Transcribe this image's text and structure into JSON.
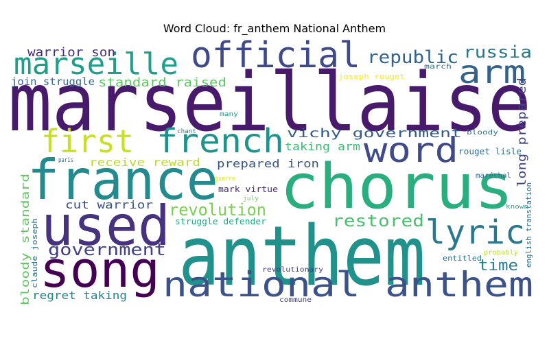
{
  "chart_data": {
    "type": "wordcloud",
    "title": "Word Cloud: fr_anthem National Anthem",
    "words": [
      {
        "text": "marseillaise",
        "color": "#481a6c"
      },
      {
        "text": "anthem",
        "color": "#21918c"
      },
      {
        "text": "chorus",
        "color": "#29af7f"
      },
      {
        "text": "france",
        "color": "#238a8d"
      },
      {
        "text": "used",
        "color": "#46327e"
      },
      {
        "text": "song",
        "color": "#440154"
      },
      {
        "text": "national anthem",
        "color": "#3b528b"
      },
      {
        "text": "official",
        "color": "#3e4a89"
      },
      {
        "text": "marseille",
        "color": "#1f9e89"
      },
      {
        "text": "arm",
        "color": "#33638d"
      },
      {
        "text": "first",
        "color": "#c8e020"
      },
      {
        "text": "french",
        "color": "#20928c"
      },
      {
        "text": "word",
        "color": "#3e4a89"
      },
      {
        "text": "lyric",
        "color": "#2a788e"
      },
      {
        "text": "republic",
        "color": "#33638d"
      },
      {
        "text": "russia",
        "color": "#2a788e"
      },
      {
        "text": "standard raised",
        "color": "#5ec962"
      },
      {
        "text": "warrior son",
        "color": "#472d7b"
      },
      {
        "text": "join struggle",
        "color": "#31688e"
      },
      {
        "text": "joseph rouget",
        "color": "#fde725"
      },
      {
        "text": "march",
        "color": "#2d708e"
      },
      {
        "text": "vichy government",
        "color": "#365c8d"
      },
      {
        "text": "taking arm",
        "color": "#3dbc74"
      },
      {
        "text": "receive reward",
        "color": "#b8de29"
      },
      {
        "text": "prepared iron",
        "color": "#39568c"
      },
      {
        "text": "long prepared",
        "color": "#414487"
      },
      {
        "text": "revolution",
        "color": "#7ad151"
      },
      {
        "text": "restored",
        "color": "#4ac16d"
      },
      {
        "text": "government",
        "color": "#424086"
      },
      {
        "text": "time",
        "color": "#287d8e"
      },
      {
        "text": "cut warrior",
        "color": "#3b528b"
      },
      {
        "text": "mark virtue",
        "color": "#482878"
      },
      {
        "text": "bloody standard",
        "color": "#5ec962"
      },
      {
        "text": "regret taking",
        "color": "#26828e"
      },
      {
        "text": "struggle defender",
        "color": "#22a884"
      },
      {
        "text": "claude joseph",
        "color": "#2c728e"
      },
      {
        "text": "english translation",
        "color": "#2c728e"
      },
      {
        "text": "rouget lisle",
        "color": "#2c728e"
      },
      {
        "text": "entitled",
        "color": "#2c728e"
      },
      {
        "text": "revolutionary",
        "color": "#443983"
      },
      {
        "text": "commune",
        "color": "#414487"
      },
      {
        "text": "probably",
        "color": "#bddf26"
      },
      {
        "text": "maréchal",
        "color": "#31688e"
      },
      {
        "text": "known",
        "color": "#21a585"
      },
      {
        "text": "bloody",
        "color": "#2a788e"
      },
      {
        "text": "many",
        "color": "#21918c"
      },
      {
        "text": "chant",
        "color": "#2a788e"
      },
      {
        "text": "paris",
        "color": "#2d708e"
      },
      {
        "text": "july",
        "color": "#6ece58"
      },
      {
        "text": "guerre",
        "color": "#dfe318"
      }
    ]
  }
}
